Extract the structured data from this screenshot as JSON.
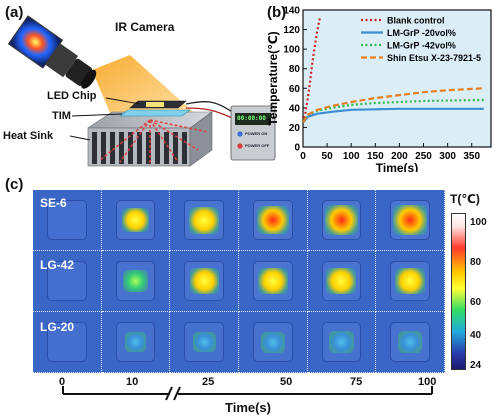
{
  "panel_a": {
    "label": "(a)",
    "camera_label": "IR Camera",
    "led_label": "LED Chip",
    "tim_label": "TIM",
    "heatsink_label": "Heat Sink",
    "power_display": "00:00:00",
    "power_buttons": [
      "POWER ON",
      "POWER OFF"
    ]
  },
  "panel_b": {
    "label": "(b)"
  },
  "panel_c": {
    "label": "(c)",
    "rows": [
      "SE-6",
      "LG-42",
      "LG-20"
    ],
    "time_ticks": [
      "0",
      "10",
      "25",
      "50",
      "75",
      "100"
    ],
    "time_label": "Time(s)",
    "colorbar_title": "T(℃)",
    "colorbar_ticks": [
      "100",
      "80",
      "60",
      "40",
      "24"
    ],
    "colors": {
      "cold": "#2a45a8",
      "hot": "#e8332a",
      "frame_bg": "#3a66c6"
    },
    "intensity": [
      [
        0.0,
        0.55,
        0.75,
        0.9,
        0.95,
        1.0
      ],
      [
        0.0,
        0.35,
        0.65,
        0.7,
        0.72,
        0.73
      ],
      [
        0.0,
        0.1,
        0.2,
        0.25,
        0.28,
        0.3
      ]
    ]
  },
  "chart_data": {
    "type": "line",
    "xlabel": "Time(s)",
    "ylabel": "Temperature(℃)",
    "xlim": [
      0,
      390
    ],
    "ylim": [
      0,
      140
    ],
    "xticks": [
      0,
      50,
      100,
      150,
      200,
      250,
      300,
      350
    ],
    "yticks": [
      0,
      20,
      40,
      60,
      80,
      100,
      120,
      140
    ],
    "legend_position": "top-right",
    "series": [
      {
        "name": "Blank control",
        "color": "#cc1f1f",
        "style": "dotted",
        "x": [
          0,
          5,
          10,
          15,
          20,
          25,
          30,
          35
        ],
        "y": [
          25,
          35,
          50,
          68,
          88,
          105,
          120,
          132
        ]
      },
      {
        "name": "LM-GrP -20vol%",
        "color": "#3b8fd0",
        "style": "solid",
        "x": [
          0,
          10,
          30,
          60,
          100,
          150,
          200,
          250,
          300,
          375
        ],
        "y": [
          25,
          31,
          34,
          36,
          38,
          38.5,
          39,
          39,
          39,
          39
        ]
      },
      {
        "name": "LM-GrP -42vol%",
        "color": "#2fb84a",
        "style": "dotted",
        "x": [
          0,
          10,
          30,
          60,
          100,
          150,
          200,
          250,
          300,
          375
        ],
        "y": [
          25,
          33,
          37,
          40,
          43,
          45,
          46,
          47,
          47.5,
          48
        ]
      },
      {
        "name": "Shin Etsu X-23-7921-5",
        "color": "#e67e22",
        "style": "dashed",
        "x": [
          0,
          10,
          30,
          60,
          100,
          150,
          200,
          250,
          300,
          375
        ],
        "y": [
          25,
          33,
          38,
          42,
          46,
          50,
          53,
          56,
          58,
          60
        ]
      }
    ]
  }
}
